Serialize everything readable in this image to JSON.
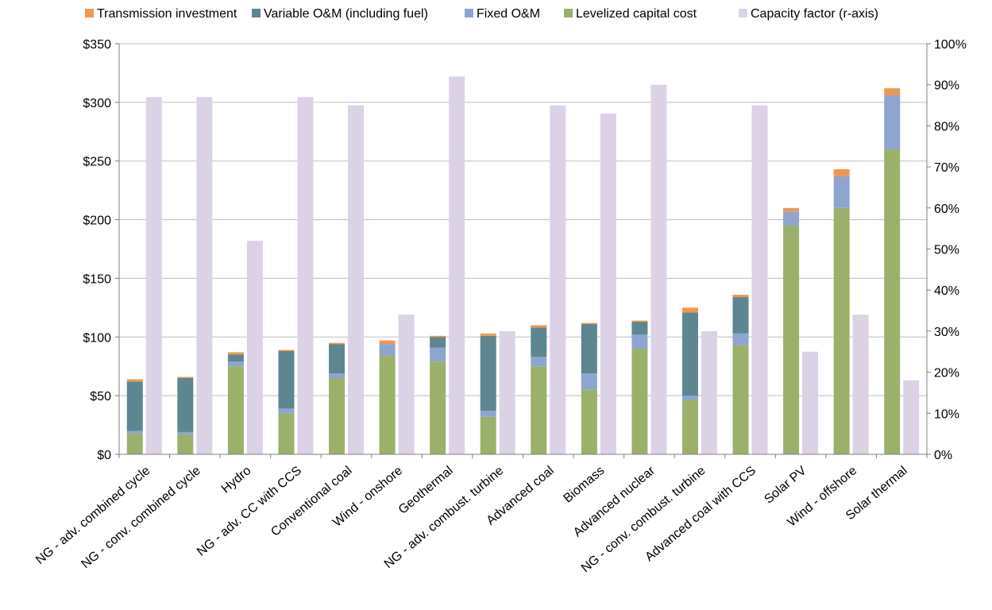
{
  "chart_data": {
    "type": "bar",
    "stacked": true,
    "title": "",
    "xlabel": "",
    "ylabel": "",
    "y_left": {
      "lim": [
        0,
        350
      ],
      "ticks": [
        0,
        50,
        100,
        150,
        200,
        250,
        300,
        350
      ],
      "tick_labels": [
        "$0",
        "$50",
        "$100",
        "$150",
        "$200",
        "$250",
        "$300",
        "$350"
      ]
    },
    "y_right": {
      "lim": [
        0,
        100
      ],
      "ticks": [
        0,
        10,
        20,
        30,
        40,
        50,
        60,
        70,
        80,
        90,
        100
      ],
      "tick_labels": [
        "0%",
        "10%",
        "20%",
        "30%",
        "40%",
        "50%",
        "60%",
        "70%",
        "80%",
        "90%",
        "100%"
      ]
    },
    "grid": true,
    "legend_position": "top",
    "categories": [
      "NG - adv. combined cycle",
      "NG - conv. combined cycle",
      "Hydro",
      "NG - adv. CC with CCS",
      "Conventional coal",
      "Wind - onshore",
      "Geothermal",
      "NG - adv. combust. turbine",
      "Advanced coal",
      "Biomass",
      "Advanced nuclear",
      "NG - conv. combust. turbine",
      "Advanced coal with CCS",
      "Solar PV",
      "Wind - offshore",
      "Solar thermal"
    ],
    "stack_series": [
      {
        "name": "Levelized capital cost",
        "color": "#9bb16b",
        "values": [
          18,
          17,
          75,
          35,
          65,
          84,
          79,
          32,
          75,
          55,
          90,
          46,
          93,
          195,
          210,
          260
        ]
      },
      {
        "name": "Fixed O&M",
        "color": "#8ea5cf",
        "values": [
          2,
          2,
          4,
          4,
          4,
          10,
          12,
          5,
          8,
          14,
          12,
          4,
          10,
          12,
          27,
          46
        ]
      },
      {
        "name": "Variable O&M (including fuel)",
        "color": "#5d8690",
        "values": [
          42,
          46,
          6,
          49,
          25,
          0,
          9,
          64,
          25,
          42,
          11,
          71,
          31,
          0,
          0,
          0
        ]
      },
      {
        "name": "Transmission investment",
        "color": "#f0984f",
        "values": [
          2,
          1,
          2,
          1,
          1,
          3,
          1,
          2,
          2,
          1,
          1,
          4,
          2,
          3,
          6,
          6
        ]
      }
    ],
    "capacity_series": {
      "name": "Capacity factor (r-axis)",
      "color": "#dcd2e6",
      "axis": "right",
      "values": [
        87,
        87,
        52,
        87,
        85,
        34,
        92,
        30,
        85,
        83,
        90,
        30,
        85,
        25,
        34,
        18
      ]
    },
    "legend": [
      {
        "name": "Transmission investment",
        "color": "#f0984f"
      },
      {
        "name": "Variable O&M (including fuel)",
        "color": "#5d8690"
      },
      {
        "name": "Fixed O&M",
        "color": "#8ea5cf"
      },
      {
        "name": "Levelized capital cost",
        "color": "#9bb16b"
      },
      {
        "name": "Capacity factor (r-axis)",
        "color": "#dcd2e6"
      }
    ]
  }
}
